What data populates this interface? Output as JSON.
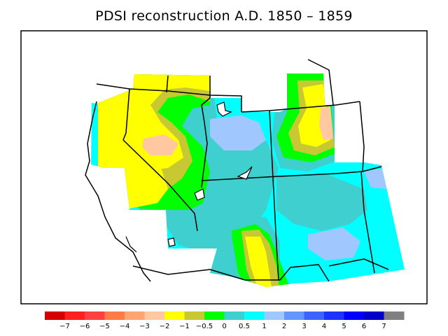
{
  "title": "PDSI reconstruction A.D. 1850 – 1859",
  "legend": {
    "colors": [
      "#d70000",
      "#ff1f1f",
      "#ff4040",
      "#ff7b45",
      "#ffa472",
      "#ffc8a0",
      "#ffff00",
      "#c8c832",
      "#00ff00",
      "#3fcfcf",
      "#00ffff",
      "#a0c8ff",
      "#6496ff",
      "#3c64ff",
      "#1e32ff",
      "#0000ff",
      "#0000c8",
      "#808080"
    ],
    "labels": [
      "−7",
      "−6",
      "−5",
      "−4",
      "−3",
      "−2",
      "−1",
      "−0.5",
      "0",
      "0.5",
      "1",
      "2",
      "3",
      "4",
      "5",
      "6",
      "7"
    ]
  },
  "map": {
    "region": "Western United States",
    "lake_icon": "lake-icon"
  }
}
